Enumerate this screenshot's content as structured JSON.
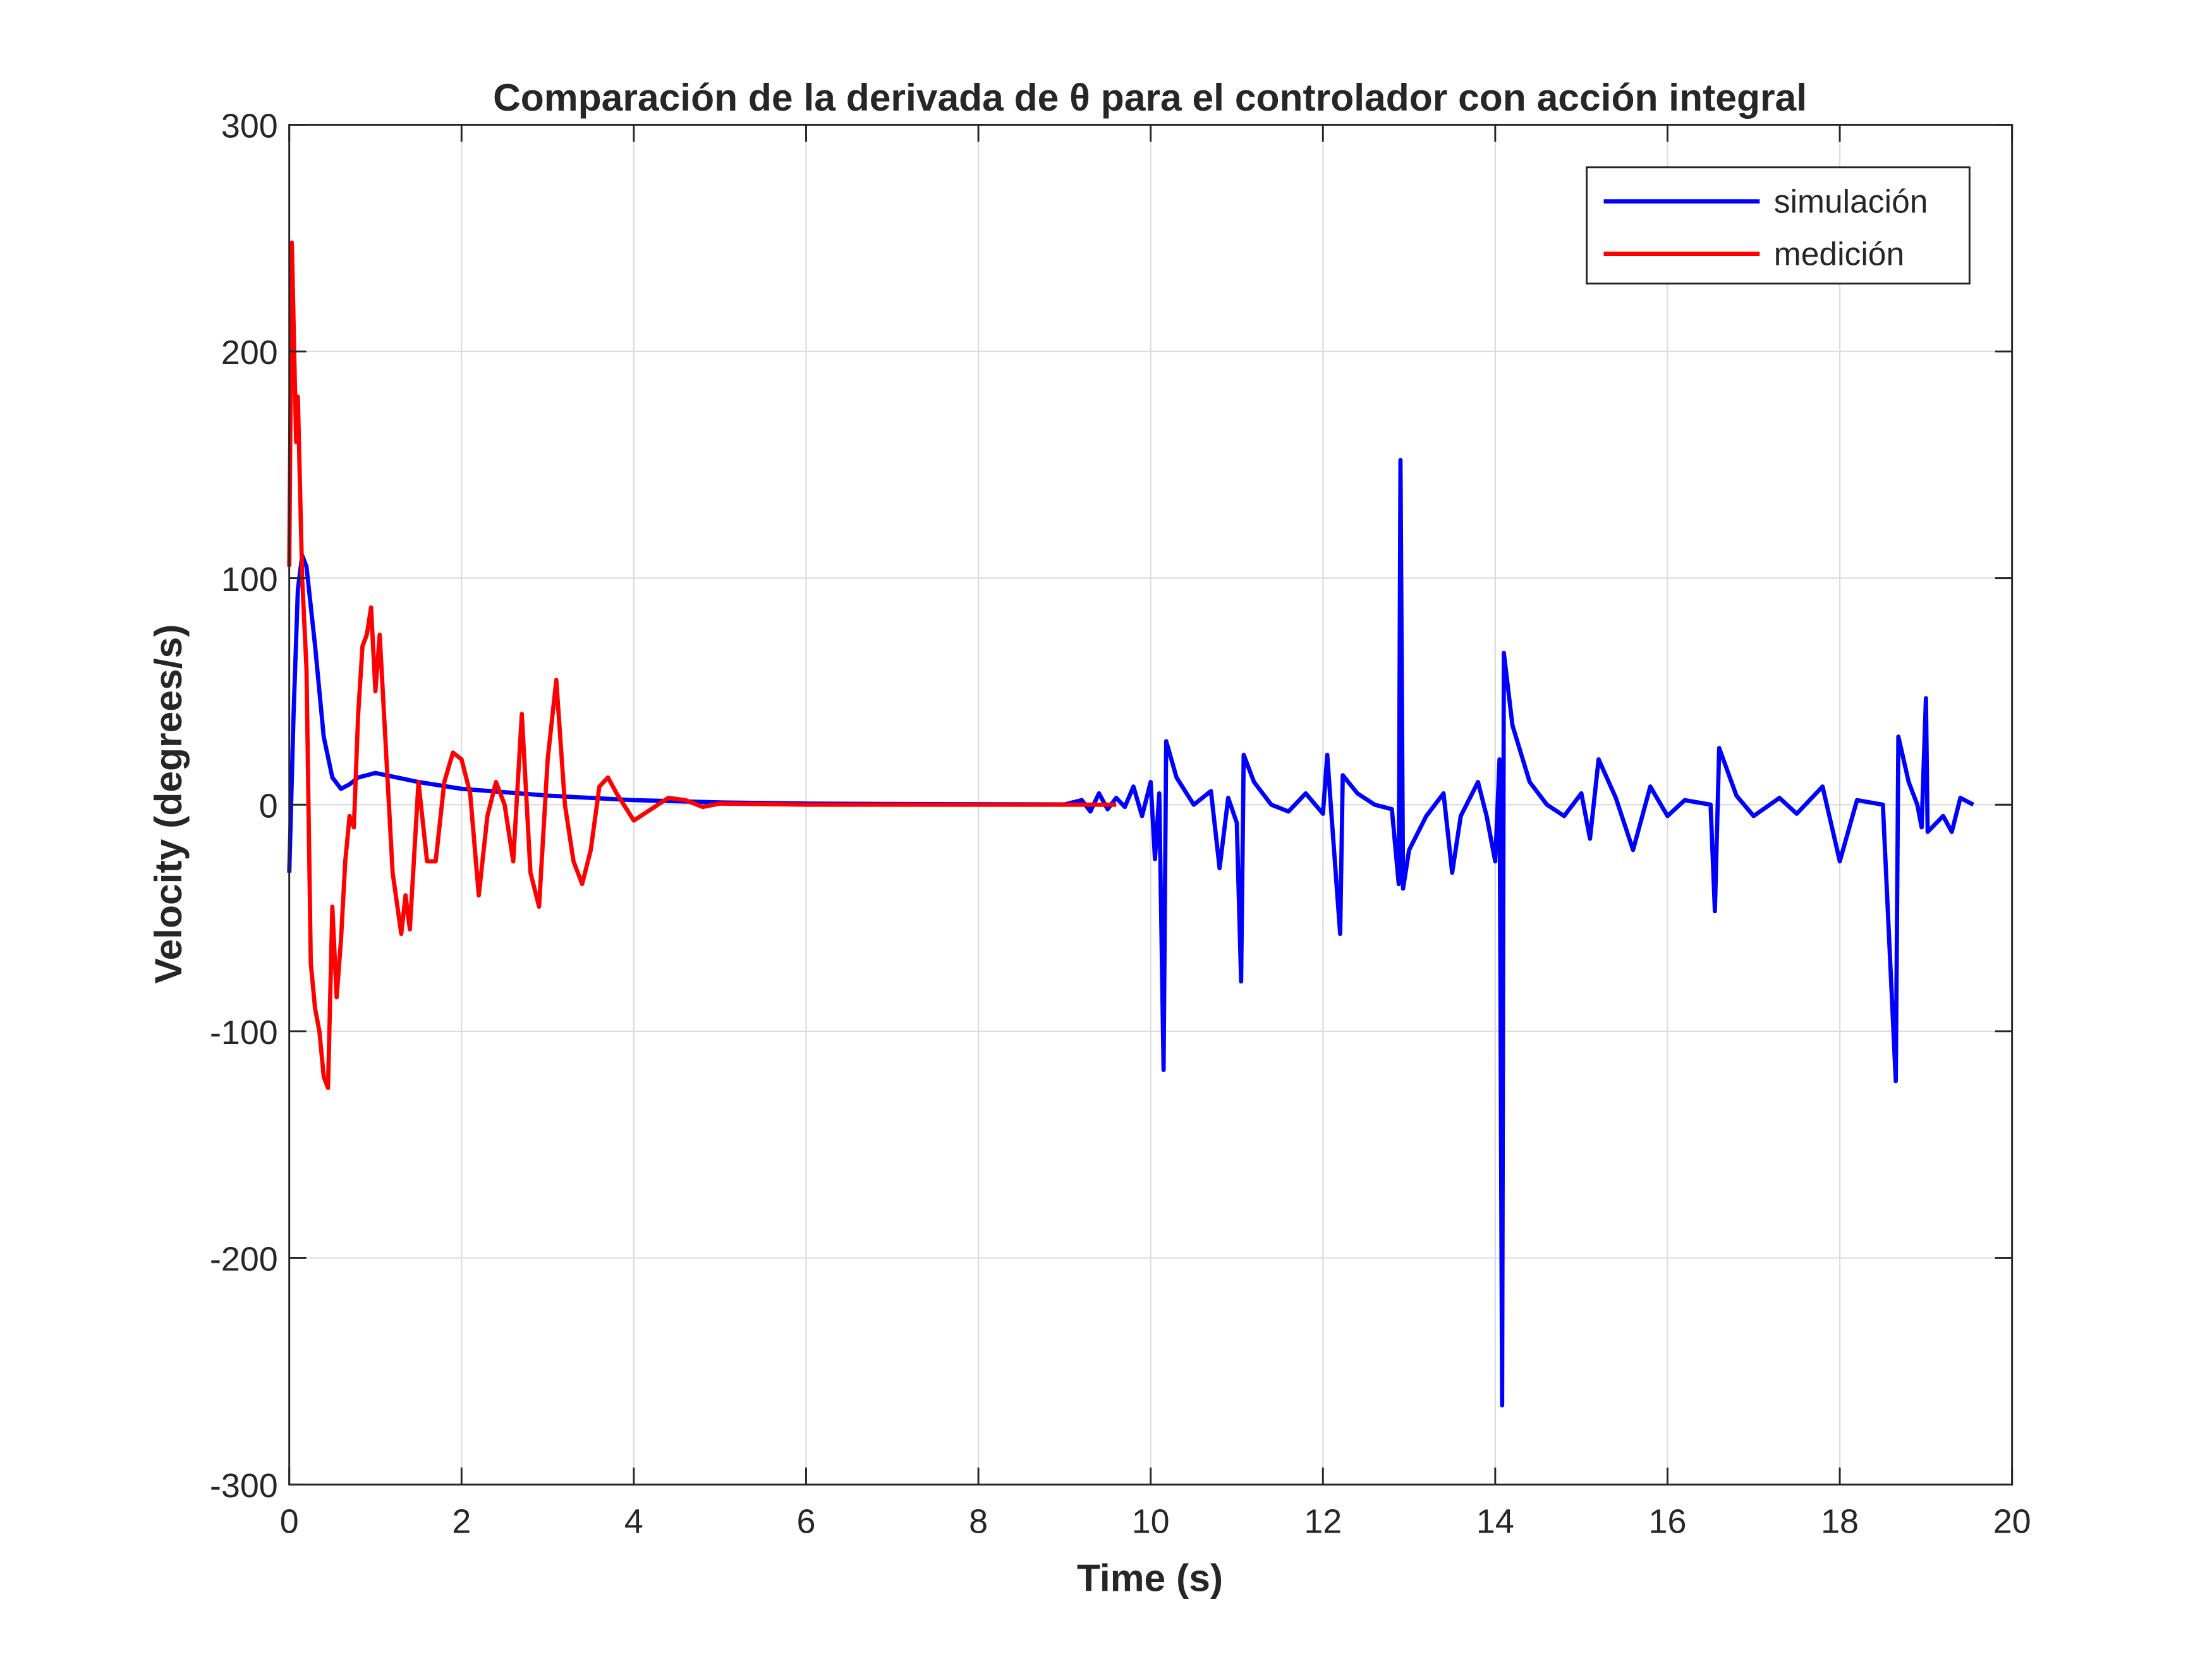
{
  "chart_data": {
    "type": "line",
    "title": "Comparación de la derivada de θ para el controlador con acción integral",
    "x_label": "Time (s)",
    "y_label": "Velocity (degrees/s)",
    "xlim": [
      0,
      20
    ],
    "xticks": [
      0,
      2,
      4,
      6,
      8,
      10,
      12,
      14,
      16,
      18,
      20
    ],
    "ylim": [
      -300,
      300
    ],
    "yticks": [
      -300,
      -200,
      -100,
      0,
      100,
      200,
      300
    ],
    "grid": true,
    "legend": "upper-right",
    "series": [
      {
        "name": "simulación",
        "color": "#0000ff",
        "x": [
          0,
          0.05,
          0.1,
          0.15,
          0.2,
          0.3,
          0.4,
          0.5,
          0.6,
          0.7,
          0.8,
          1.0,
          1.5,
          2,
          3,
          4,
          5,
          6,
          7,
          8,
          9,
          9.2,
          9.3,
          9.4,
          9.5,
          9.6,
          9.7,
          9.8,
          9.9,
          10.0,
          10.05,
          10.1,
          10.15,
          10.18,
          10.3,
          10.5,
          10.7,
          10.8,
          10.9,
          11.0,
          11.05,
          11.08,
          11.2,
          11.4,
          11.6,
          11.8,
          12.0,
          12.05,
          12.1,
          12.2,
          12.23,
          12.4,
          12.6,
          12.8,
          12.88,
          12.9,
          12.93,
          13.0,
          13.2,
          13.4,
          13.5,
          13.6,
          13.8,
          13.9,
          14.0,
          14.05,
          14.08,
          14.1,
          14.2,
          14.4,
          14.6,
          14.8,
          15.0,
          15.1,
          15.2,
          15.4,
          15.6,
          15.8,
          16.0,
          16.2,
          16.5,
          16.55,
          16.6,
          16.8,
          17.0,
          17.3,
          17.5,
          17.8,
          18.0,
          18.2,
          18.5,
          18.65,
          18.68,
          18.8,
          18.9,
          18.95,
          19.0,
          19.02,
          19.2,
          19.3,
          19.4,
          19.55
        ],
        "values": [
          -30,
          40,
          95,
          110,
          105,
          70,
          30,
          12,
          7,
          9,
          12,
          14,
          10,
          7,
          4,
          2,
          1,
          0.5,
          0.3,
          0.2,
          0.1,
          2,
          -3,
          5,
          -2,
          3,
          -1,
          8,
          -5,
          10,
          -24,
          5,
          -117,
          28,
          12,
          0,
          6,
          -28,
          3,
          -8,
          -78,
          22,
          10,
          0,
          -3,
          5,
          -4,
          22,
          -5,
          -57,
          13,
          5,
          0,
          -2,
          -35,
          152,
          -37,
          -20,
          -5,
          5,
          -30,
          -5,
          10,
          -5,
          -25,
          20,
          -265,
          67,
          35,
          10,
          0,
          -5,
          5,
          -15,
          20,
          3,
          -20,
          8,
          -5,
          2,
          0,
          -47,
          25,
          4,
          -5,
          3,
          -4,
          8,
          -25,
          2,
          0,
          -122,
          30,
          10,
          0,
          -10,
          47,
          -12,
          -5,
          -12,
          3,
          0
        ]
      },
      {
        "name": "medición",
        "color": "#ff0000",
        "x": [
          0,
          0.03,
          0.08,
          0.1,
          0.15,
          0.2,
          0.25,
          0.3,
          0.35,
          0.4,
          0.45,
          0.5,
          0.55,
          0.6,
          0.65,
          0.7,
          0.75,
          0.8,
          0.85,
          0.9,
          0.95,
          1.0,
          1.05,
          1.1,
          1.15,
          1.2,
          1.3,
          1.35,
          1.4,
          1.5,
          1.6,
          1.7,
          1.8,
          1.9,
          2.0,
          2.1,
          2.2,
          2.3,
          2.4,
          2.5,
          2.6,
          2.7,
          2.8,
          2.9,
          3.0,
          3.1,
          3.2,
          3.3,
          3.4,
          3.5,
          3.6,
          3.7,
          3.8,
          4.0,
          4.2,
          4.4,
          4.6,
          4.8,
          5.0,
          6,
          7,
          8,
          9,
          9.6
        ],
        "values": [
          105,
          248,
          160,
          180,
          100,
          60,
          -70,
          -90,
          -100,
          -120,
          -125,
          -45,
          -85,
          -60,
          -25,
          -5,
          -10,
          40,
          70,
          75,
          87,
          50,
          75,
          40,
          5,
          -30,
          -57,
          -40,
          -55,
          10,
          -25,
          -25,
          10,
          23,
          20,
          5,
          -40,
          -5,
          10,
          0,
          -25,
          40,
          -30,
          -45,
          20,
          55,
          0,
          -25,
          -35,
          -20,
          8,
          12,
          5,
          -7,
          -2,
          3,
          2,
          -1,
          0.5,
          0,
          0,
          0,
          0,
          0
        ]
      }
    ]
  }
}
